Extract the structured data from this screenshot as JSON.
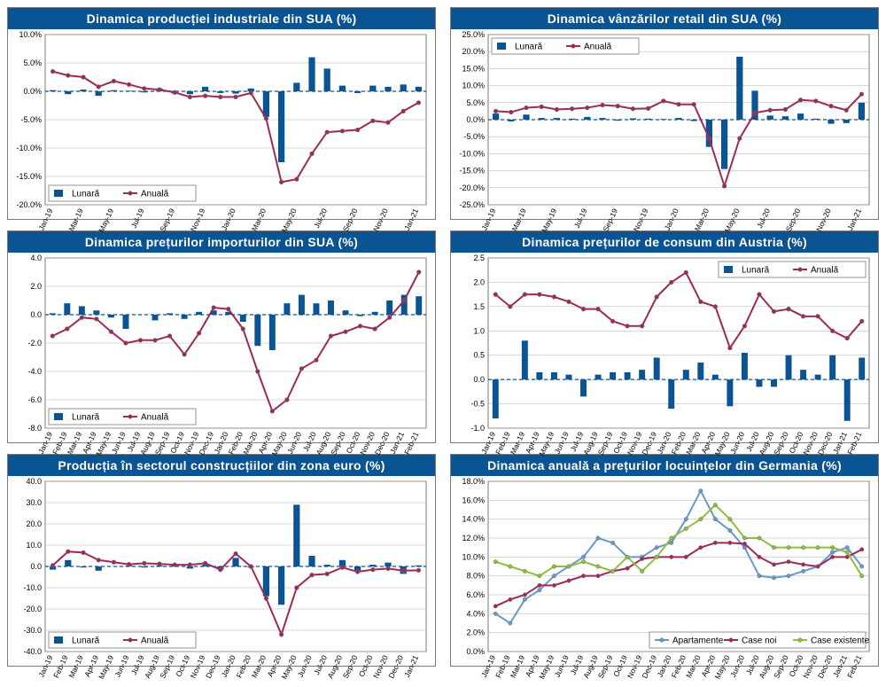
{
  "colors": {
    "title_bg": "#0a5493",
    "bar": "#0a5493",
    "line": "#a02858",
    "line_green": "#8fbf3f",
    "line_blue": "#6699cc",
    "grid": "#b0b0b0",
    "border": "#7a7a7a",
    "zero_dash": "#0a5493",
    "marker_edge": "#6a6a6a"
  },
  "charts": [
    {
      "id": "c1",
      "title": "Dinamica producției industriale din SUA (%)",
      "type": "bar_line",
      "ymin": -20,
      "ymax": 10,
      "ystep": 5,
      "ysuffix": ".0%",
      "legend": {
        "pos": "bottom-left",
        "items": [
          {
            "type": "bar",
            "label": "Lunară"
          },
          {
            "type": "line",
            "color": "#a02858",
            "label": "Anuală"
          }
        ]
      },
      "x": [
        "Jan-19",
        "Feb-19",
        "Mar-19",
        "Apr-19",
        "May-19",
        "Jun-19",
        "Jul-19",
        "Aug-19",
        "Sep-19",
        "Oct-19",
        "Nov-19",
        "Dec-19",
        "Jan-20",
        "Feb-20",
        "Mar-20",
        "Apr-20",
        "May-20",
        "Jun-20",
        "Jul-20",
        "Aug-20",
        "Sep-20",
        "Oct-20",
        "Nov-20",
        "Dec-20",
        "Jan-21"
      ],
      "xshow_every": 2,
      "bar": [
        0.2,
        -0.5,
        0.3,
        -0.8,
        0.2,
        0.1,
        -0.2,
        0.5,
        -0.4,
        -0.5,
        0.8,
        -0.3,
        -0.4,
        0.5,
        -4.5,
        -12.5,
        1.5,
        6.0,
        4.0,
        1.0,
        -0.3,
        1.0,
        0.8,
        1.2,
        0.8
      ],
      "line": [
        3.5,
        2.8,
        2.5,
        0.8,
        1.8,
        1.2,
        0.5,
        0.3,
        -0.2,
        -1.0,
        -0.8,
        -1.0,
        -1.0,
        -0.3,
        -4.8,
        -16.0,
        -15.5,
        -11.0,
        -7.2,
        -7.0,
        -6.8,
        -5.2,
        -5.5,
        -3.5,
        -2.0
      ],
      "line_color": "#a02858"
    },
    {
      "id": "c2",
      "title": "Dinamica vânzărilor retail din SUA (%)",
      "type": "bar_line",
      "ymin": -25,
      "ymax": 25,
      "ystep": 5,
      "ysuffix": ".0%",
      "legend": {
        "pos": "top-left",
        "items": [
          {
            "type": "bar",
            "label": "Lunară"
          },
          {
            "type": "line",
            "color": "#a02858",
            "label": "Anuală"
          }
        ]
      },
      "x": [
        "Jan-19",
        "Feb-19",
        "Mar-19",
        "Apr-19",
        "May-19",
        "Jun-19",
        "Jul-19",
        "Aug-19",
        "Sep-19",
        "Oct-19",
        "Nov-19",
        "Dec-19",
        "Jan-20",
        "Feb-20",
        "Mar-20",
        "Apr-20",
        "May-20",
        "Jun-20",
        "Jul-20",
        "Aug-20",
        "Sep-20",
        "Oct-20",
        "Nov-20",
        "Dec-20",
        "Jan-21"
      ],
      "xshow_every": 2,
      "bar": [
        1.8,
        -0.5,
        1.5,
        0.5,
        0.5,
        0.3,
        0.8,
        0.5,
        -0.3,
        0.4,
        0.3,
        0.2,
        0.5,
        -0.4,
        -8.0,
        -14.5,
        18.5,
        8.5,
        1.2,
        1.0,
        1.8,
        0.3,
        -1.2,
        -1.0,
        5.0
      ],
      "line": [
        2.5,
        2.2,
        3.5,
        3.8,
        3.0,
        3.2,
        3.5,
        4.3,
        4.0,
        3.2,
        3.3,
        5.5,
        4.5,
        4.5,
        -5.5,
        -19.5,
        -5.5,
        2.0,
        2.8,
        3.0,
        5.8,
        5.5,
        4.0,
        2.8,
        7.5
      ],
      "line_color": "#a02858"
    },
    {
      "id": "c3",
      "title": "Dinamica prețurilor importurilor din SUA (%)",
      "type": "bar_line",
      "ymin": -8,
      "ymax": 4,
      "ystep": 2,
      "ysuffix": ".0",
      "legend": {
        "pos": "bottom-left",
        "items": [
          {
            "type": "bar",
            "label": "Lunară"
          },
          {
            "type": "line",
            "color": "#a02858",
            "label": "Anuală"
          }
        ]
      },
      "x": [
        "Jan-19",
        "Feb-19",
        "Mar-19",
        "Apr-19",
        "May-19",
        "Jun-19",
        "Jul-19",
        "Aug-19",
        "Sep-19",
        "Oct-19",
        "Nov-19",
        "Dec-19",
        "Jan-20",
        "Feb-20",
        "Mar-20",
        "Apr-20",
        "May-20",
        "Jun-20",
        "Jul-20",
        "Aug-20",
        "Sep-20",
        "Oct-20",
        "Nov-20",
        "Dec-20",
        "Jan-21",
        "Feb-21"
      ],
      "xshow_every": 1,
      "bar": [
        0.1,
        0.8,
        0.6,
        0.3,
        -0.2,
        -1.0,
        0.0,
        -0.4,
        0.1,
        -0.3,
        0.2,
        0.3,
        0.2,
        -0.5,
        -2.2,
        -2.5,
        0.8,
        1.4,
        0.8,
        1.0,
        0.3,
        -0.1,
        0.2,
        1.0,
        1.4,
        1.3
      ],
      "line": [
        -1.5,
        -1.0,
        -0.2,
        -0.3,
        -1.2,
        -2.0,
        -1.8,
        -1.8,
        -1.5,
        -2.8,
        -1.3,
        0.5,
        0.4,
        -1.0,
        -4.0,
        -6.8,
        -6.0,
        -3.8,
        -3.2,
        -1.5,
        -1.2,
        -0.8,
        -1.0,
        -0.2,
        1.0,
        3.0
      ],
      "line_color": "#a02858"
    },
    {
      "id": "c4",
      "title": "Dinamica prețurilor de consum din Austria (%)",
      "type": "bar_line",
      "ymin": -1.0,
      "ymax": 2.5,
      "ystep": 0.5,
      "ysuffix": "",
      "legend": {
        "pos": "top-right",
        "items": [
          {
            "type": "bar",
            "label": "Lunară"
          },
          {
            "type": "line",
            "color": "#a02858",
            "label": "Anuală"
          }
        ]
      },
      "x": [
        "Jan-19",
        "Feb-19",
        "Mar-19",
        "Apr-19",
        "May-19",
        "Jun-19",
        "Jul-19",
        "Aug-19",
        "Sep-19",
        "Oct-19",
        "Nov-19",
        "Dec-19",
        "Jan-20",
        "Feb-20",
        "Mar-20",
        "Apr-20",
        "May-20",
        "Jun-20",
        "Jul-20",
        "Aug-20",
        "Sep-20",
        "Oct-20",
        "Nov-20",
        "Dec-20",
        "Jan-21",
        "Feb-21"
      ],
      "xshow_every": 1,
      "bar": [
        -0.8,
        0.0,
        0.8,
        0.15,
        0.15,
        0.1,
        -0.35,
        0.1,
        0.15,
        0.15,
        0.2,
        0.45,
        -0.6,
        0.2,
        0.35,
        0.1,
        -0.55,
        0.55,
        -0.15,
        -0.15,
        0.5,
        0.2,
        0.1,
        0.5,
        -0.85,
        0.45
      ],
      "line": [
        1.75,
        1.5,
        1.75,
        1.75,
        1.7,
        1.6,
        1.45,
        1.45,
        1.2,
        1.1,
        1.1,
        1.7,
        2.0,
        2.2,
        1.6,
        1.5,
        0.65,
        1.1,
        1.75,
        1.4,
        1.45,
        1.3,
        1.3,
        1.0,
        0.85,
        1.2
      ],
      "line_color": "#a02858"
    },
    {
      "id": "c5",
      "title": "Producția în sectorul construcțiilor din zona euro (%)",
      "type": "bar_line",
      "ymin": -40,
      "ymax": 40,
      "ystep": 10,
      "ysuffix": ".0",
      "legend": {
        "pos": "bottom-left",
        "items": [
          {
            "type": "bar",
            "label": "Lunară"
          },
          {
            "type": "line",
            "color": "#a02858",
            "label": "Anuală"
          }
        ]
      },
      "x": [
        "Jan-19",
        "Feb-19",
        "Mar-19",
        "Apr-19",
        "May-19",
        "Jun-19",
        "Jul-19",
        "Aug-19",
        "Sep-19",
        "Oct-19",
        "Nov-19",
        "Dec-19",
        "Jan-20",
        "Feb-20",
        "Mar-20",
        "Apr-20",
        "May-20",
        "Jun-20",
        "Jul-20",
        "Aug-20",
        "Sep-20",
        "Oct-20",
        "Nov-20",
        "Dec-20",
        "Jan-21"
      ],
      "xshow_every": 1,
      "bar": [
        -1.5,
        3.0,
        -0.5,
        -2.0,
        0.0,
        0.5,
        -0.5,
        0.5,
        1.0,
        -1.0,
        0.8,
        -1.5,
        4.0,
        -0.5,
        -14.0,
        -18.0,
        29.0,
        5.0,
        0.8,
        3.0,
        -2.5,
        0.8,
        1.8,
        -3.5,
        0.5
      ],
      "line": [
        0.5,
        7.0,
        6.5,
        3.0,
        2.0,
        1.0,
        1.5,
        1.2,
        0.8,
        0.8,
        1.5,
        -1.5,
        6.0,
        0.0,
        -15.0,
        -32.0,
        -10.0,
        -4.0,
        -3.5,
        -0.5,
        -2.5,
        -1.5,
        -1.0,
        -2.0,
        -1.8
      ],
      "line_color": "#a02858"
    },
    {
      "id": "c6",
      "title": "Dinamica anuală a prețurilor locuințelor din Germania (%)",
      "type": "multi_line",
      "ymin": 0,
      "ymax": 18,
      "ystep": 2,
      "ysuffix": ".0%",
      "legend": {
        "pos": "bottom-right",
        "items": [
          {
            "type": "line",
            "color": "#6699cc",
            "label": "Apartamente"
          },
          {
            "type": "line",
            "color": "#a02858",
            "label": "Case noi"
          },
          {
            "type": "line",
            "color": "#8fbf3f",
            "label": "Case existente"
          }
        ]
      },
      "x": [
        "Jan-19",
        "Feb-19",
        "Mar-19",
        "Apr-19",
        "May-19",
        "Jun-19",
        "Jul-19",
        "Aug-19",
        "Sep-19",
        "Oct-19",
        "Nov-19",
        "Dec-19",
        "Jan-20",
        "Feb-20",
        "Mar-20",
        "Apr-20",
        "May-20",
        "Jun-20",
        "Jul-20",
        "Aug-20",
        "Sep-20",
        "Oct-20",
        "Nov-20",
        "Dec-20",
        "Jan-21",
        "Feb-21"
      ],
      "xshow_every": 1,
      "lines": [
        {
          "color": "#6699cc",
          "values": [
            4.0,
            3.0,
            5.5,
            6.5,
            8.0,
            9.0,
            10.0,
            12.0,
            11.5,
            10.0,
            10.0,
            11.0,
            11.5,
            14.0,
            17.0,
            14.0,
            12.8,
            11.0,
            8.0,
            7.8,
            8.0,
            8.5,
            9.0,
            10.5,
            11.0,
            9.0
          ]
        },
        {
          "color": "#a02858",
          "values": [
            4.8,
            5.5,
            6.0,
            7.0,
            7.0,
            7.5,
            8.0,
            8.0,
            8.5,
            8.8,
            9.8,
            10.0,
            10.0,
            10.0,
            11.0,
            11.5,
            11.5,
            11.4,
            10.0,
            9.2,
            9.5,
            9.2,
            9.0,
            10.0,
            10.0,
            10.8
          ]
        },
        {
          "color": "#8fbf3f",
          "values": [
            9.5,
            9.0,
            8.5,
            8.0,
            9.0,
            9.0,
            9.5,
            9.0,
            8.5,
            10.0,
            8.5,
            10.0,
            12.0,
            13.0,
            14.0,
            15.5,
            14.0,
            12.0,
            12.0,
            11.0,
            11.0,
            11.0,
            11.0,
            11.0,
            10.5,
            8.0
          ]
        }
      ]
    }
  ]
}
